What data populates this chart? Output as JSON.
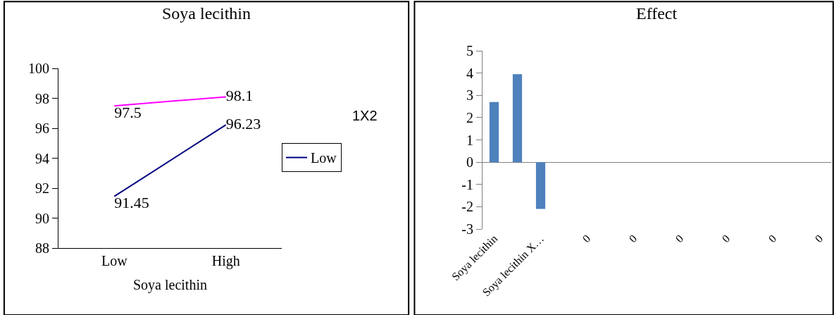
{
  "chart_data": [
    {
      "type": "line",
      "title": "Soya lecithin",
      "xlabel": "Soya lecithin",
      "categories": [
        "Low",
        "High"
      ],
      "series": [
        {
          "name": "Low",
          "color": "#000080",
          "values": [
            91.45,
            96.23
          ]
        },
        {
          "color": "#ff00ff",
          "values": [
            97.5,
            98.1
          ]
        }
      ],
      "ylim": [
        88,
        100
      ],
      "yticks": [
        88,
        90,
        92,
        94,
        96,
        98,
        100
      ],
      "legend": "right",
      "data_labels": true,
      "marker": "none",
      "annotations": [
        "1X2"
      ]
    },
    {
      "type": "bar",
      "title": "Effect",
      "categories": [
        "Soya lecithin",
        null,
        "Soya lecithin X…",
        null,
        "0",
        null,
        "0",
        null,
        "0",
        null,
        "0",
        null,
        "0",
        null,
        "0"
      ],
      "values": [
        2.7,
        3.95,
        -2.1,
        0,
        0,
        0,
        0,
        0,
        0,
        0,
        0,
        0,
        0,
        0,
        0
      ],
      "color": "#4f81bd",
      "ylim": [
        -3,
        5
      ],
      "yticks": [
        -3,
        -2,
        -1,
        0,
        1,
        2,
        3,
        4,
        5
      ]
    }
  ]
}
